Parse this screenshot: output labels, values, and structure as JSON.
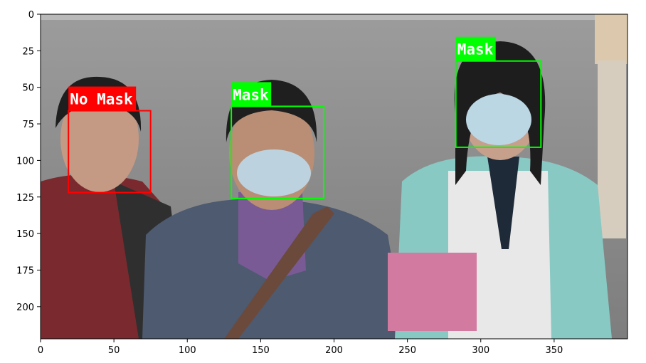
{
  "chart_data": {
    "type": "image_with_detections",
    "xlim": [
      0,
      400
    ],
    "ylim": [
      222,
      0
    ],
    "x_ticks": [
      0,
      50,
      100,
      150,
      200,
      250,
      300,
      350
    ],
    "y_ticks": [
      0,
      25,
      50,
      75,
      100,
      125,
      150,
      175,
      200
    ],
    "detections": [
      {
        "label": "No Mask",
        "bbox_data": [
          19,
          66,
          75,
          122
        ],
        "color": "#ff0000"
      },
      {
        "label": "Mask",
        "bbox_data": [
          130,
          63,
          193,
          126
        ],
        "color": "#00ff00"
      },
      {
        "label": "Mask",
        "bbox_data": [
          283,
          32,
          341,
          91
        ],
        "color": "#00ff00"
      }
    ]
  }
}
